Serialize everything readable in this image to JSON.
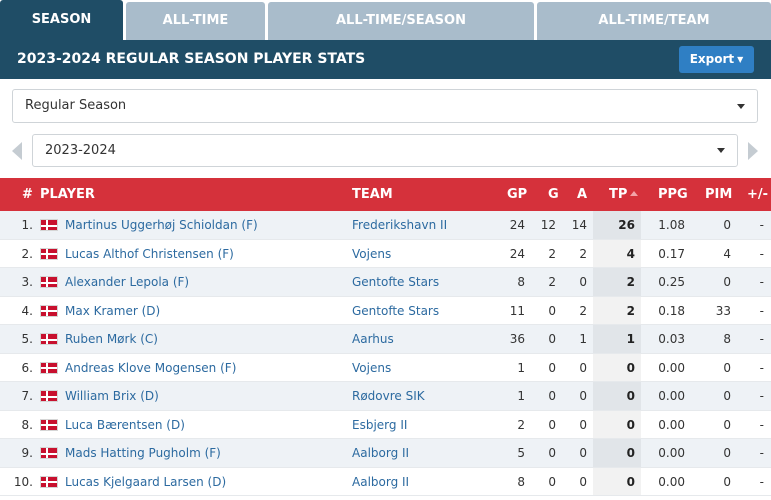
{
  "tabs": [
    {
      "label": "SEASON",
      "active": true
    },
    {
      "label": "ALL-TIME",
      "active": false
    },
    {
      "label": "ALL-TIME/SEASON",
      "active": false
    },
    {
      "label": "ALL-TIME/TEAM",
      "active": false
    }
  ],
  "header": {
    "title": "2023-2024 REGULAR SEASON PLAYER STATS",
    "export_label": "Export"
  },
  "filters": {
    "season_type": "Regular Season",
    "season": "2023-2024"
  },
  "table": {
    "columns": {
      "rank": "#",
      "player": "PLAYER",
      "team": "TEAM",
      "gp": "GP",
      "g": "G",
      "a": "A",
      "tp": "TP",
      "ppg": "PPG",
      "pim": "PIM",
      "pm": "+/-"
    },
    "sort_column": "TP",
    "rows": [
      {
        "rank": "1.",
        "player": "Martinus Uggerhøj Schioldan (F)",
        "team": "Frederikshavn II",
        "gp": "24",
        "g": "12",
        "a": "14",
        "tp": "26",
        "ppg": "1.08",
        "pim": "0",
        "pm": "-",
        "flag": "denmark-flag-icon"
      },
      {
        "rank": "2.",
        "player": "Lucas Althof Christensen (F)",
        "team": "Vojens",
        "gp": "24",
        "g": "2",
        "a": "2",
        "tp": "4",
        "ppg": "0.17",
        "pim": "4",
        "pm": "-",
        "flag": "denmark-flag-icon"
      },
      {
        "rank": "3.",
        "player": "Alexander Lepola (F)",
        "team": "Gentofte Stars",
        "gp": "8",
        "g": "2",
        "a": "0",
        "tp": "2",
        "ppg": "0.25",
        "pim": "0",
        "pm": "-",
        "flag": "denmark-flag-icon"
      },
      {
        "rank": "4.",
        "player": "Max Kramer (D)",
        "team": "Gentofte Stars",
        "gp": "11",
        "g": "0",
        "a": "2",
        "tp": "2",
        "ppg": "0.18",
        "pim": "33",
        "pm": "-",
        "flag": "denmark-flag-icon"
      },
      {
        "rank": "5.",
        "player": "Ruben Mørk (C)",
        "team": "Aarhus",
        "gp": "36",
        "g": "0",
        "a": "1",
        "tp": "1",
        "ppg": "0.03",
        "pim": "8",
        "pm": "-",
        "flag": "denmark-flag-icon"
      },
      {
        "rank": "6.",
        "player": "Andreas Klove Mogensen (F)",
        "team": "Vojens",
        "gp": "1",
        "g": "0",
        "a": "0",
        "tp": "0",
        "ppg": "0.00",
        "pim": "0",
        "pm": "-",
        "flag": "denmark-flag-icon"
      },
      {
        "rank": "7.",
        "player": "William Brix (D)",
        "team": "Rødovre SIK",
        "gp": "1",
        "g": "0",
        "a": "0",
        "tp": "0",
        "ppg": "0.00",
        "pim": "0",
        "pm": "-",
        "flag": "denmark-flag-icon"
      },
      {
        "rank": "8.",
        "player": "Luca Bærentsen (D)",
        "team": "Esbjerg II",
        "gp": "2",
        "g": "0",
        "a": "0",
        "tp": "0",
        "ppg": "0.00",
        "pim": "0",
        "pm": "-",
        "flag": "denmark-flag-icon"
      },
      {
        "rank": "9.",
        "player": "Mads Hatting Pugholm (F)",
        "team": "Aalborg II",
        "gp": "5",
        "g": "0",
        "a": "0",
        "tp": "0",
        "ppg": "0.00",
        "pim": "0",
        "pm": "-",
        "flag": "denmark-flag-icon"
      },
      {
        "rank": "10.",
        "player": "Lucas Kjelgaard Larsen (D)",
        "team": "Aalborg II",
        "gp": "8",
        "g": "0",
        "a": "0",
        "tp": "0",
        "ppg": "0.00",
        "pim": "0",
        "pm": "-",
        "flag": "denmark-flag-icon"
      }
    ]
  },
  "colors": {
    "header_bg": "#1f4d66",
    "tab_inactive": "#a9bccb",
    "table_head": "#d5313b",
    "export_btn": "#2f7fc4",
    "link": "#2c6aa0"
  }
}
